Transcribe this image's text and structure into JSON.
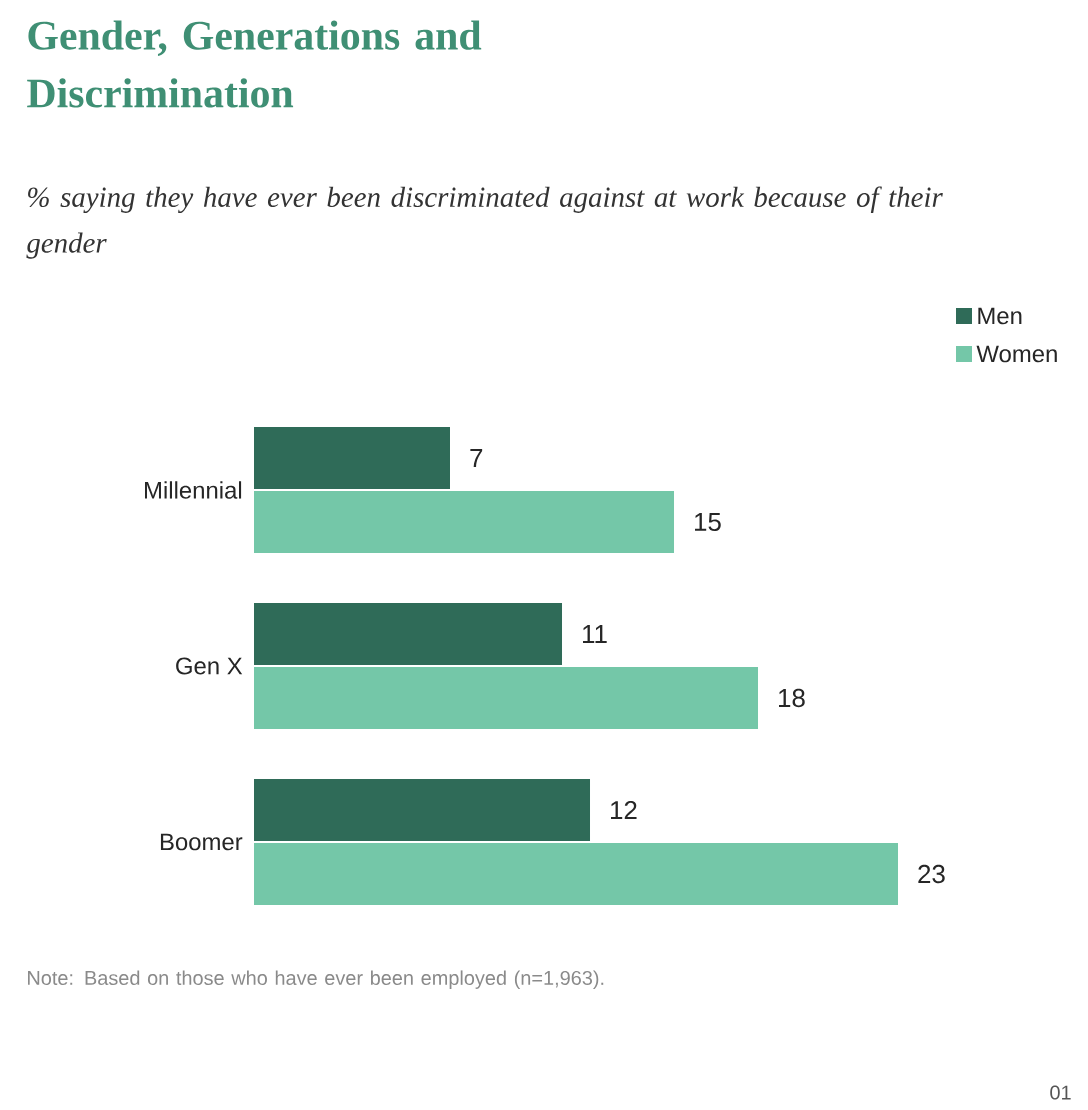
{
  "chart_data": {
    "type": "bar",
    "orientation": "horizontal",
    "title": "Gender, Generations and Discrimination",
    "subtitle": "% saying they have ever been discriminated against at work because of their gender",
    "categories": [
      "Millennial",
      "Gen X",
      "Boomer"
    ],
    "series": [
      {
        "name": "Men",
        "color": "#2f6b58",
        "values": [
          7,
          11,
          12
        ]
      },
      {
        "name": "Women",
        "color": "#74c7a8",
        "values": [
          15,
          18,
          23
        ]
      }
    ],
    "data_labels": true,
    "legend": "top right",
    "annotations": [
      "Note: Based on those who have ever been employed (n=1,963).",
      "01"
    ]
  }
}
